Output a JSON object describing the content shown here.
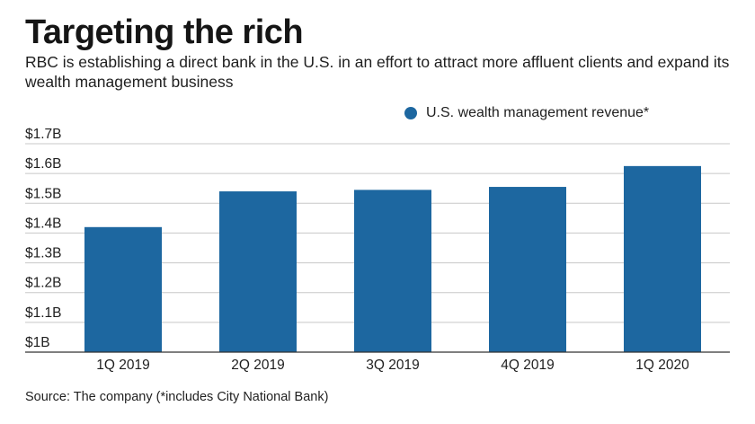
{
  "title": "Targeting the rich",
  "subtitle": "RBC is establishing a direct bank in the U.S. in an effort to attract more affluent clients and expand its wealth management business",
  "source": "Source: The company (*includes City National Bank)",
  "colors": {
    "bar": "#1d67a0",
    "grid": "#c8c8c8",
    "axis": "#333333"
  },
  "chart_data": {
    "type": "bar",
    "categories": [
      "1Q 2019",
      "2Q 2019",
      "3Q 2019",
      "4Q 2019",
      "1Q 2020"
    ],
    "series": [
      {
        "name": "U.S. wealth management revenue*",
        "values": [
          1.42,
          1.54,
          1.545,
          1.555,
          1.625
        ]
      }
    ],
    "yticks": [
      1.0,
      1.1,
      1.2,
      1.3,
      1.4,
      1.5,
      1.6,
      1.7
    ],
    "ytick_labels": [
      "$1B",
      "$1.1B",
      "$1.2B",
      "$1.3B",
      "$1.4B",
      "$1.5B",
      "$1.6B",
      "$1.7B"
    ],
    "ylim": [
      1.0,
      1.7
    ],
    "xlabel": "",
    "ylabel": "",
    "grid": true,
    "legend_position": "top-right"
  }
}
